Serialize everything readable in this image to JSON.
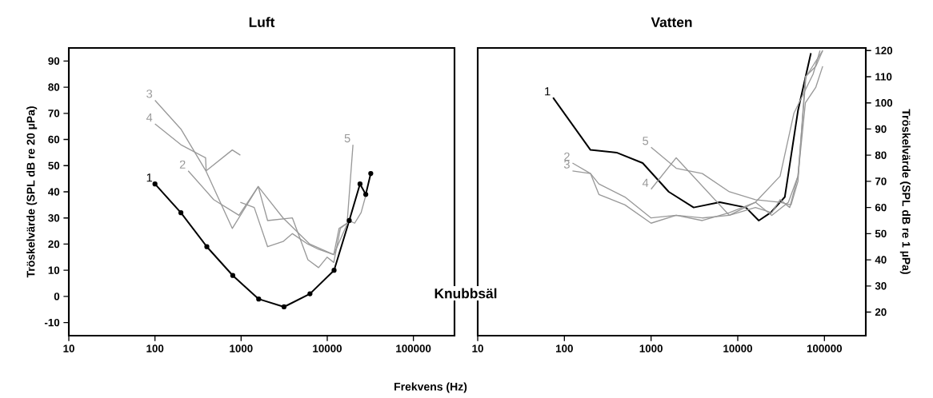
{
  "chart_data": [
    {
      "type": "line",
      "title": "Luft",
      "xlabel": "Frekvens (Hz)",
      "ylabel": "Tröskelvärde (SPL dB re 20 µPa)",
      "log": "x",
      "xlim": [
        10,
        300000
      ],
      "xticks": [
        10,
        100,
        1000,
        10000,
        100000
      ],
      "ylim": [
        -15,
        95
      ],
      "yticks": [
        -10,
        0,
        10,
        20,
        30,
        40,
        50,
        60,
        70,
        80,
        90
      ],
      "series": [
        {
          "name": "1",
          "color": "#000000",
          "marker": "circle",
          "x": [
            100,
            200,
            400,
            800,
            1600,
            3150,
            6300,
            12000,
            18000,
            24000,
            28000,
            32000
          ],
          "values": [
            43,
            32,
            19,
            8,
            -1,
            -4,
            1,
            10,
            29,
            43,
            39,
            47
          ]
        },
        {
          "name": "2",
          "color": "#999999",
          "x": [
            243,
            480,
            944,
            1580,
            3070,
            6270,
            11900,
            17700,
            20800,
            24700,
            27700
          ],
          "values": [
            48,
            37,
            31,
            42,
            30,
            20,
            16,
            29,
            28,
            32,
            38
          ]
        },
        {
          "name": "3",
          "color": "#999999",
          "x": [
            100,
            200,
            390,
            790,
            1580,
            2030,
            3940,
            5960,
            7930,
            9950,
            11900,
            14200,
            17000
          ],
          "values": [
            75,
            64,
            48,
            26,
            42,
            29,
            30,
            14,
            11,
            15,
            13,
            26,
            28
          ]
        },
        {
          "name": "4",
          "color": "#999999",
          "x": [
            100,
            200,
            387,
            393,
            790,
            980
          ],
          "values": [
            66,
            58,
            53,
            48,
            56,
            54
          ]
        },
        {
          "name": "5",
          "color": "#999999",
          "x": [
            19900,
            17000,
            13700,
            11900,
            7930,
            5960,
            3940,
            3070,
            2030,
            1420,
            980
          ],
          "values": [
            58,
            28,
            26,
            16,
            18,
            20,
            24,
            21,
            19,
            34,
            36
          ]
        }
      ],
      "annotations": [
        "Knubbsäl"
      ]
    },
    {
      "type": "line",
      "title": "Vatten",
      "y2label": "Tröskelvärde (SPL dB re 1 µPa)",
      "log": "x",
      "xlim": [
        10,
        300000
      ],
      "xticks": [
        10,
        100,
        1000,
        10000,
        100000
      ],
      "y2lim": [
        11,
        121
      ],
      "y2ticks": [
        20,
        30,
        40,
        50,
        60,
        70,
        80,
        90,
        100,
        110,
        120
      ],
      "series": [
        {
          "name": "1",
          "color": "#000000",
          "axis": "y2",
          "x": [
            74,
            200,
            400,
            800,
            1600,
            3100,
            6200,
            12400,
            17500,
            23900,
            34900,
            49500,
            69800
          ],
          "values": [
            102,
            82,
            81,
            77,
            66,
            60,
            62,
            60,
            55,
            58,
            64,
            97,
            119
          ]
        },
        {
          "name": "2",
          "color": "#999999",
          "axis": "y2",
          "x": [
            124,
            200,
            250,
            500,
            1000,
            1950,
            3900,
            8000,
            16000,
            24700,
            30800,
            39800,
            49500,
            60300,
            79600,
            95500
          ],
          "values": [
            77,
            73,
            69,
            64,
            56,
            57,
            56,
            57,
            60,
            58,
            63,
            60,
            72,
            100,
            106,
            114
          ]
        },
        {
          "name": "3",
          "color": "#999999",
          "axis": "y2",
          "x": [
            124,
            200,
            250,
            500,
            1000,
            1950,
            3900,
            8000,
            16000,
            30800,
            44400,
            74000,
            88900
          ],
          "values": [
            74,
            73,
            65,
            61,
            54,
            57,
            55,
            58,
            62,
            72,
            96,
            111,
            120
          ]
        },
        {
          "name": "4",
          "color": "#999999",
          "axis": "y2",
          "x": [
            1000,
            1950,
            8000,
            16000,
            24700,
            38400,
            49500,
            61200,
            95500
          ],
          "values": [
            67,
            79,
            57,
            62,
            57,
            62,
            72,
            110,
            120
          ]
        },
        {
          "name": "5",
          "color": "#999999",
          "axis": "y2",
          "x": [
            1000,
            1950,
            3900,
            8000,
            16000,
            30800,
            41200,
            49500,
            60300,
            79600,
            95500
          ],
          "values": [
            83,
            75,
            73,
            66,
            63,
            62,
            61,
            70,
            110,
            114,
            120
          ]
        }
      ]
    }
  ]
}
